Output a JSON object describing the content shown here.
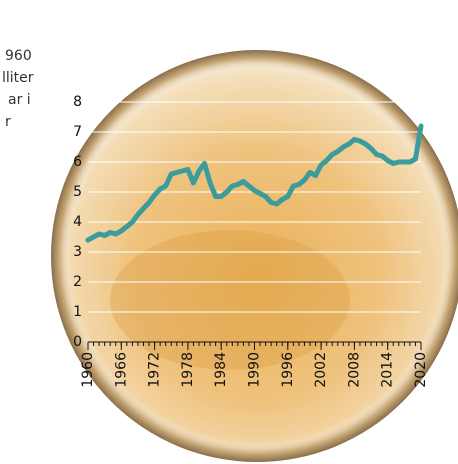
{
  "chart_data": {
    "type": "line",
    "annotation_lines": [
      "960",
      "lliter",
      "ar i",
      "r"
    ],
    "x": [
      1960,
      1961,
      1962,
      1963,
      1964,
      1965,
      1966,
      1967,
      1968,
      1969,
      1970,
      1971,
      1972,
      1973,
      1974,
      1975,
      1976,
      1977,
      1978,
      1979,
      1980,
      1981,
      1982,
      1983,
      1984,
      1985,
      1986,
      1987,
      1988,
      1989,
      1990,
      1991,
      1992,
      1993,
      1994,
      1995,
      1996,
      1997,
      1998,
      1999,
      2000,
      2001,
      2002,
      2003,
      2004,
      2005,
      2006,
      2007,
      2008,
      2009,
      2010,
      2011,
      2012,
      2013,
      2014,
      2015,
      2016,
      2017,
      2018,
      2019,
      2020
    ],
    "values": [
      3.4,
      3.5,
      3.6,
      3.55,
      3.65,
      3.6,
      3.7,
      3.85,
      4.0,
      4.25,
      4.45,
      4.65,
      4.9,
      5.1,
      5.2,
      5.6,
      5.65,
      5.7,
      5.75,
      5.3,
      5.7,
      5.95,
      5.3,
      4.85,
      4.85,
      5.0,
      5.2,
      5.25,
      5.35,
      5.2,
      5.05,
      4.95,
      4.85,
      4.65,
      4.6,
      4.75,
      4.85,
      5.2,
      5.25,
      5.4,
      5.65,
      5.55,
      5.9,
      6.05,
      6.25,
      6.35,
      6.5,
      6.6,
      6.75,
      6.7,
      6.6,
      6.45,
      6.25,
      6.2,
      6.05,
      5.95,
      6.0,
      6.0,
      6.0,
      6.1,
      7.2
    ],
    "color": "#3a9c9b",
    "xlim": [
      1960,
      2020
    ],
    "xticks": [
      1960,
      1966,
      1972,
      1978,
      1984,
      1990,
      1996,
      2002,
      2008,
      2014,
      2020
    ],
    "ylim": [
      0,
      8
    ],
    "yticks": [
      0,
      1,
      2,
      3,
      4,
      5,
      6,
      7,
      8
    ],
    "grid": true
  }
}
